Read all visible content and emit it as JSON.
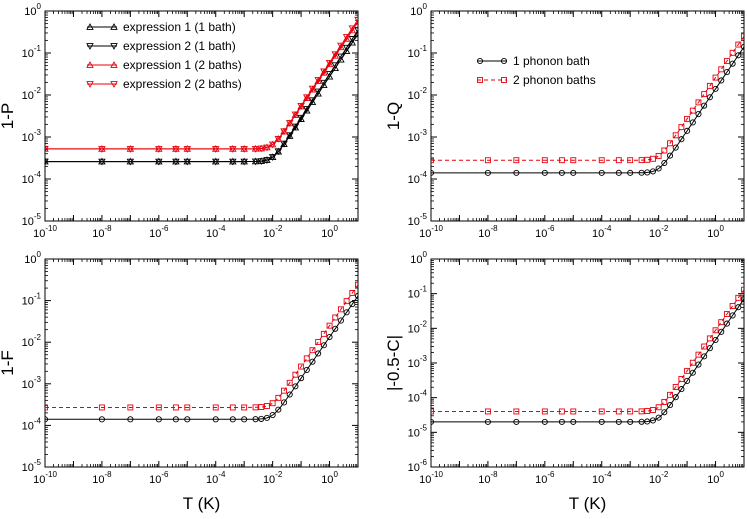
{
  "chart_data": [
    {
      "type": "line",
      "name": "1-P",
      "ylabel": "1-P",
      "xlabel": "",
      "xscale": "log",
      "yscale": "log",
      "xlim_exp": [
        -10,
        1
      ],
      "ylim_exp": [
        -5,
        0
      ],
      "legend": "top-left",
      "series": [
        {
          "name": "expression 1 (1 bath)",
          "color": "#000000",
          "marker": "triangle-up",
          "plateau": 0.00026,
          "knee_exp": -2.0,
          "end_value": 0.28
        },
        {
          "name": "expression 2 (1 bath)",
          "color": "#000000",
          "marker": "triangle-down",
          "plateau": 0.00026,
          "knee_exp": -2.0,
          "end_value": 0.35
        },
        {
          "name": "expression 1 (2 baths)",
          "color": "#e8000b",
          "marker": "triangle-up",
          "plateau": 0.00052,
          "knee_exp": -2.0,
          "end_value": 0.55
        },
        {
          "name": "expression 2 (2 baths)",
          "color": "#e8000b",
          "marker": "triangle-down",
          "plateau": 0.00052,
          "knee_exp": -2.0,
          "end_value": 0.62
        }
      ]
    },
    {
      "type": "line",
      "name": "1-Q",
      "ylabel": "1-Q",
      "xlabel": "",
      "xscale": "log",
      "yscale": "log",
      "xlim_exp": [
        -10,
        1
      ],
      "ylim_exp": [
        -5,
        0
      ],
      "legend": "top-left",
      "series": [
        {
          "name": "1 phonon bath",
          "color": "#000000",
          "marker": "circle",
          "dash": "solid",
          "plateau": 0.00014,
          "knee_exp": -2.0,
          "end_value": 0.14
        },
        {
          "name": "2 phonon baths",
          "color": "#e8000b",
          "marker": "square",
          "dash": "dashed",
          "plateau": 0.00028,
          "knee_exp": -2.0,
          "end_value": 0.25
        }
      ]
    },
    {
      "type": "line",
      "name": "1-F",
      "ylabel": "1-F",
      "xlabel": "T (K)",
      "xscale": "log",
      "yscale": "log",
      "xlim_exp": [
        -10,
        1
      ],
      "ylim_exp": [
        -5,
        0
      ],
      "series": [
        {
          "name": "1 phonon bath",
          "color": "#000000",
          "marker": "circle",
          "dash": "solid",
          "plateau": 0.00014,
          "knee_exp": -2.0,
          "end_value": 0.13
        },
        {
          "name": "2 phonon baths",
          "color": "#e8000b",
          "marker": "square",
          "dash": "dashed",
          "plateau": 0.00027,
          "knee_exp": -2.0,
          "end_value": 0.24
        }
      ]
    },
    {
      "type": "line",
      "name": "|-0.5-C|",
      "ylabel": "|-0.5-C|",
      "xlabel": "T (K)",
      "xscale": "log",
      "yscale": "log",
      "xlim_exp": [
        -10,
        1
      ],
      "ylim_exp": [
        -6,
        0
      ],
      "series": [
        {
          "name": "1 phonon bath",
          "color": "#000000",
          "marker": "circle",
          "dash": "solid",
          "plateau": 2e-05,
          "knee_exp": -2.0,
          "end_value": 0.07
        },
        {
          "name": "2 phonon baths",
          "color": "#e8000b",
          "marker": "square",
          "dash": "dashed",
          "plateau": 4e-05,
          "knee_exp": -2.0,
          "end_value": 0.13
        }
      ]
    }
  ],
  "sample_exps": [
    -10,
    -8,
    -7,
    -6,
    -5.4,
    -5,
    -4,
    -3.4,
    -3,
    -2.6,
    -2.4,
    -2.2,
    -2,
    -1.8,
    -1.6,
    -1.4,
    -1.2,
    -1,
    -0.8,
    -0.6,
    -0.4,
    -0.2,
    0,
    0.2,
    0.4,
    0.6,
    0.8,
    1
  ]
}
